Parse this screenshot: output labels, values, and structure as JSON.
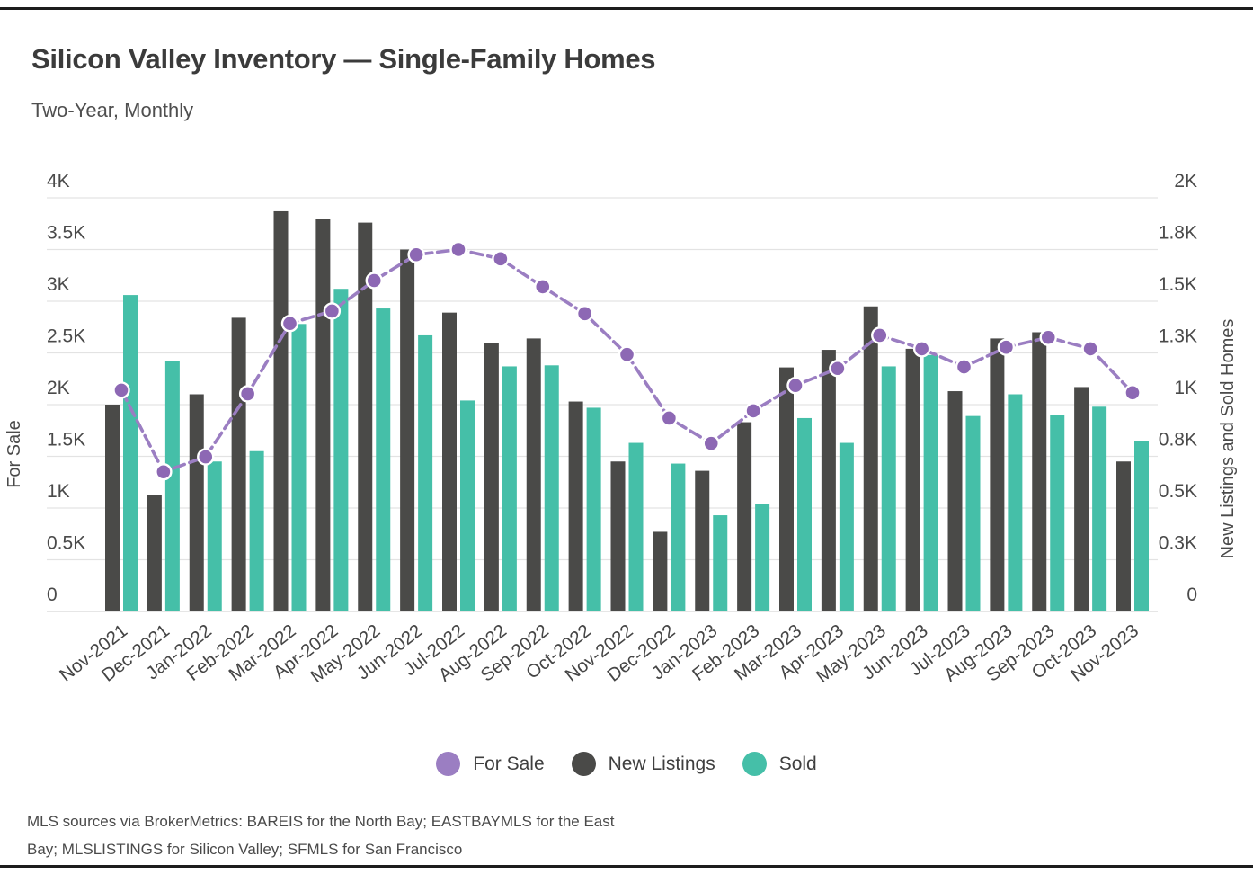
{
  "page": {
    "title": "Silicon Valley Inventory — Single-Family Homes",
    "subtitle": "Two-Year, Monthly",
    "footer_line1": "MLS sources via BrokerMetrics: BAREIS for the North Bay; EASTBAYMLS for the East",
    "footer_line2": "Bay; MLSLISTINGS for Silicon Valley; SFMLS for San Francisco"
  },
  "colors": {
    "for_sale": "#9b7ec2",
    "for_sale_marker": "#8d68b4",
    "new_listings": "#4a4a48",
    "sold": "#45bfa8",
    "grid": "#e3e3e3",
    "axis_text": "#4a4a4a",
    "rule": "#1c1c1c"
  },
  "legend": [
    {
      "label": "For Sale",
      "color": "#9b7ec2"
    },
    {
      "label": "New Listings",
      "color": "#4a4a48"
    },
    {
      "label": "Sold",
      "color": "#45bfa8"
    }
  ],
  "chart_data": {
    "type": "bar",
    "subtype": "grouped bars + line overlay, dual y-axis",
    "title": "Silicon Valley Inventory — Single-Family Homes",
    "subtitle": "Two-Year, Monthly",
    "grid": true,
    "legend_position": "bottom",
    "categories": [
      "Nov-2021",
      "Dec-2021",
      "Jan-2022",
      "Feb-2022",
      "Mar-2022",
      "Apr-2022",
      "May-2022",
      "Jun-2022",
      "Jul-2022",
      "Aug-2022",
      "Sep-2022",
      "Oct-2022",
      "Nov-2022",
      "Dec-2022",
      "Jan-2023",
      "Feb-2023",
      "Mar-2023",
      "Apr-2023",
      "May-2023",
      "Jun-2023",
      "Jul-2023",
      "Aug-2023",
      "Sep-2023",
      "Oct-2023",
      "Nov-2023"
    ],
    "series": [
      {
        "name": "For Sale",
        "type": "line",
        "axis": "left",
        "color": "#9b7ec2",
        "values": [
          2140,
          1350,
          1495,
          2105,
          2785,
          2905,
          3200,
          3450,
          3500,
          3410,
          3140,
          2880,
          2485,
          1870,
          1625,
          1940,
          2185,
          2350,
          2670,
          2540,
          2365,
          2555,
          2650,
          2540,
          2115
        ]
      },
      {
        "name": "New Listings",
        "type": "bar",
        "axis": "right",
        "color": "#4a4a48",
        "values": [
          1000,
          565,
          1050,
          1420,
          1935,
          1900,
          1880,
          1750,
          1445,
          1300,
          1320,
          1015,
          725,
          385,
          680,
          915,
          1180,
          1265,
          1475,
          1270,
          1065,
          1320,
          1350,
          1085,
          725
        ]
      },
      {
        "name": "Sold",
        "type": "bar",
        "axis": "right",
        "color": "#45bfa8",
        "values": [
          1530,
          1210,
          725,
          775,
          1390,
          1560,
          1465,
          1335,
          1020,
          1185,
          1190,
          985,
          815,
          715,
          465,
          520,
          935,
          815,
          1185,
          1240,
          945,
          1050,
          950,
          990,
          825
        ]
      }
    ],
    "left_axis": {
      "title": "For Sale",
      "range": [
        0,
        4000
      ],
      "tick_labels": [
        "0",
        "0.5K",
        "1K",
        "1.5K",
        "2K",
        "2.5K",
        "3K",
        "3.5K",
        "4K"
      ],
      "tick_values": [
        0,
        500,
        1000,
        1500,
        2000,
        2500,
        3000,
        3500,
        4000
      ]
    },
    "right_axis": {
      "title": "New Listings and Sold Homes",
      "range": [
        0,
        2000
      ],
      "tick_labels": [
        "0",
        "0.3K",
        "0.5K",
        "0.8K",
        "1K",
        "1.3K",
        "1.5K",
        "1.8K",
        "2K"
      ],
      "tick_values": [
        0,
        250,
        500,
        750,
        1000,
        1250,
        1500,
        1750,
        2000
      ]
    }
  }
}
